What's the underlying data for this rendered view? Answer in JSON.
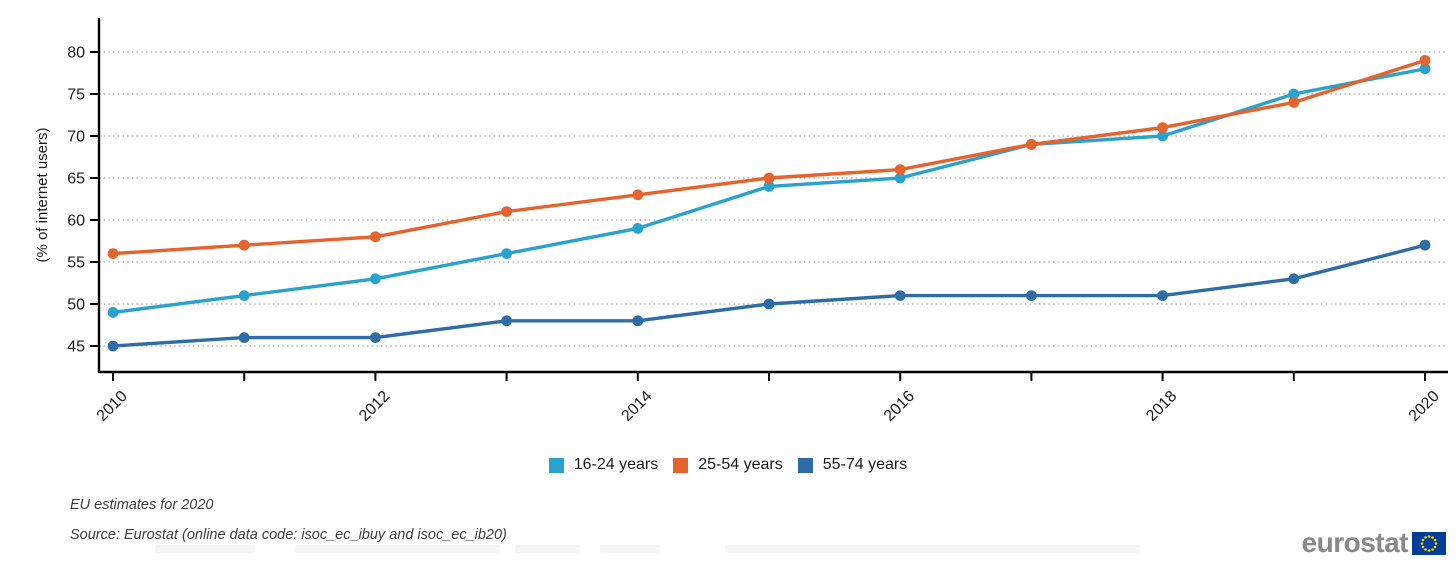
{
  "chart": {
    "ylabel": "(% of internet users)",
    "y_ticks": [
      45,
      50,
      55,
      60,
      65,
      70,
      75,
      80
    ],
    "x_labeled_years": [
      2010,
      2012,
      2014,
      2016,
      2018,
      2020
    ],
    "axis_color": "#000000",
    "gridline_color": "#a8a8a8",
    "tick_label_color": "#1a1a1a"
  },
  "chart_data": {
    "type": "line",
    "x": [
      2010,
      2011,
      2012,
      2013,
      2014,
      2015,
      2016,
      2017,
      2018,
      2019,
      2020
    ],
    "series": [
      {
        "name": "16-24 years",
        "color": "#29a2cd",
        "values": [
          49,
          51,
          53,
          56,
          59,
          64,
          65,
          69,
          70,
          75,
          78
        ]
      },
      {
        "name": "25-54 years",
        "color": "#e5632c",
        "values": [
          56,
          57,
          58,
          61,
          63,
          65,
          66,
          69,
          71,
          74,
          79
        ]
      },
      {
        "name": "55-74 years",
        "color": "#2e6da4",
        "values": [
          45,
          46,
          46,
          48,
          48,
          50,
          51,
          51,
          51,
          53,
          57
        ]
      }
    ],
    "title": "",
    "xlabel": "",
    "ylabel": "(% of internet users)",
    "xlim": [
      2010,
      2020
    ],
    "ylim": [
      42,
      84
    ],
    "grid": "horizontal-dotted",
    "legend_position": "bottom-center",
    "marker": "circle"
  },
  "footnotes": {
    "estimate_note": "EU estimates for 2020",
    "source_note": "Source: Eurostat (online data code: isoc_ec_ibuy and isoc_ec_ib20)"
  },
  "logo": {
    "text": "eurostat",
    "flag_blue": "#003e99",
    "star_yellow": "#ffcc00"
  }
}
